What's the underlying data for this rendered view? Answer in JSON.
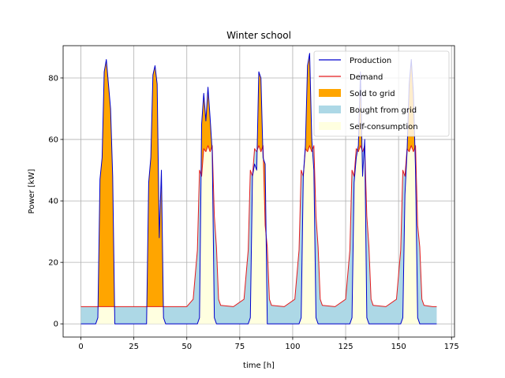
{
  "chart_data": {
    "type": "area",
    "title": "Winter school",
    "xlabel": "time [h]",
    "ylabel": "Power [kW]",
    "xlim": [
      -8.4,
      176.4
    ],
    "ylim": [
      -4.3,
      90.5
    ],
    "xticks": [
      0,
      25,
      50,
      75,
      100,
      125,
      150,
      175
    ],
    "yticks": [
      0,
      20,
      40,
      60,
      80
    ],
    "grid": true,
    "legend_position": "top-right",
    "colors": {
      "production": "#0000cd",
      "demand": "#e31a1c",
      "sold": "#ffa500",
      "bought": "#add8e6",
      "self": "#ffffe0",
      "grid": "#b0b0b0"
    },
    "legend": [
      {
        "label": "Production",
        "kind": "line",
        "series": "production"
      },
      {
        "label": "Demand",
        "kind": "line",
        "series": "demand"
      },
      {
        "label": "Sold to grid",
        "kind": "patch",
        "series": "sold"
      },
      {
        "label": "Bought from grid",
        "kind": "patch",
        "series": "bought"
      },
      {
        "label": "Self-consumption",
        "kind": "patch",
        "series": "self"
      }
    ],
    "series": [
      {
        "name": "Production",
        "x": [
          0,
          7,
          8,
          9,
          10,
          11,
          12,
          13,
          14,
          15,
          16,
          31,
          32,
          33,
          34,
          35,
          36,
          37,
          38,
          39,
          40,
          55,
          56,
          57,
          58,
          59,
          60,
          61,
          62,
          63,
          64,
          79,
          80,
          81,
          82,
          83,
          84,
          85,
          86,
          87,
          88,
          103,
          104,
          105,
          106,
          107,
          108,
          109,
          110,
          111,
          112,
          127,
          128,
          129,
          130,
          131,
          132,
          133,
          134,
          135,
          136,
          151,
          152,
          153,
          154,
          155,
          156,
          157,
          158,
          159,
          160,
          168
        ],
        "y": [
          0,
          0,
          2,
          47,
          54,
          82,
          86,
          78,
          70,
          48,
          0,
          0,
          46,
          54,
          81,
          84,
          78,
          28,
          50,
          2,
          0,
          0,
          2,
          65,
          75,
          66,
          77,
          67,
          56,
          2,
          0,
          0,
          2,
          48,
          52,
          50,
          82,
          80,
          54,
          52,
          0,
          0,
          2,
          48,
          58,
          84,
          88,
          60,
          50,
          2,
          0,
          0,
          2,
          46,
          54,
          58,
          82,
          48,
          60,
          2,
          0,
          0,
          2,
          42,
          56,
          78,
          86,
          75,
          50,
          2,
          0,
          0
        ]
      },
      {
        "name": "Demand",
        "x": [
          0,
          7,
          8,
          9,
          10,
          11,
          12,
          13,
          14,
          15,
          16,
          31,
          32,
          33,
          34,
          35,
          36,
          37,
          38,
          39,
          40,
          50,
          53,
          55,
          56,
          57,
          58,
          59,
          60,
          61,
          62,
          63,
          64,
          65,
          66,
          72,
          77,
          79,
          80,
          81,
          82,
          83,
          84,
          85,
          86,
          87,
          88,
          89,
          90,
          96,
          101,
          103,
          104,
          105,
          106,
          107,
          108,
          109,
          110,
          111,
          112,
          113,
          114,
          120,
          125,
          127,
          128,
          129,
          130,
          131,
          132,
          133,
          134,
          135,
          136,
          137,
          138,
          144,
          149,
          151,
          152,
          153,
          154,
          155,
          156,
          157,
          158,
          159,
          160,
          161,
          162,
          166,
          168
        ],
        "y": [
          5.6,
          5.6,
          5.6,
          5.6,
          5.6,
          5.6,
          5.6,
          5.6,
          5.6,
          5.6,
          5.6,
          5.6,
          5.6,
          5.6,
          5.6,
          5.6,
          5.6,
          5.6,
          5.6,
          5.6,
          5.6,
          5.6,
          8,
          24,
          50,
          48,
          57,
          56,
          58,
          56,
          58,
          35,
          25,
          8,
          6,
          5.6,
          8,
          24,
          50,
          48,
          57,
          56,
          58,
          56,
          58,
          32,
          25,
          8,
          6,
          5.6,
          8,
          24,
          50,
          48,
          57,
          56,
          58,
          56,
          58,
          35,
          25,
          8,
          6,
          5.6,
          8,
          24,
          50,
          48,
          57,
          56,
          58,
          56,
          58,
          35,
          25,
          8,
          6,
          5.6,
          8,
          24,
          50,
          48,
          57,
          56,
          58,
          56,
          58,
          32,
          25,
          8,
          6,
          5.6,
          5.6
        ]
      }
    ]
  }
}
